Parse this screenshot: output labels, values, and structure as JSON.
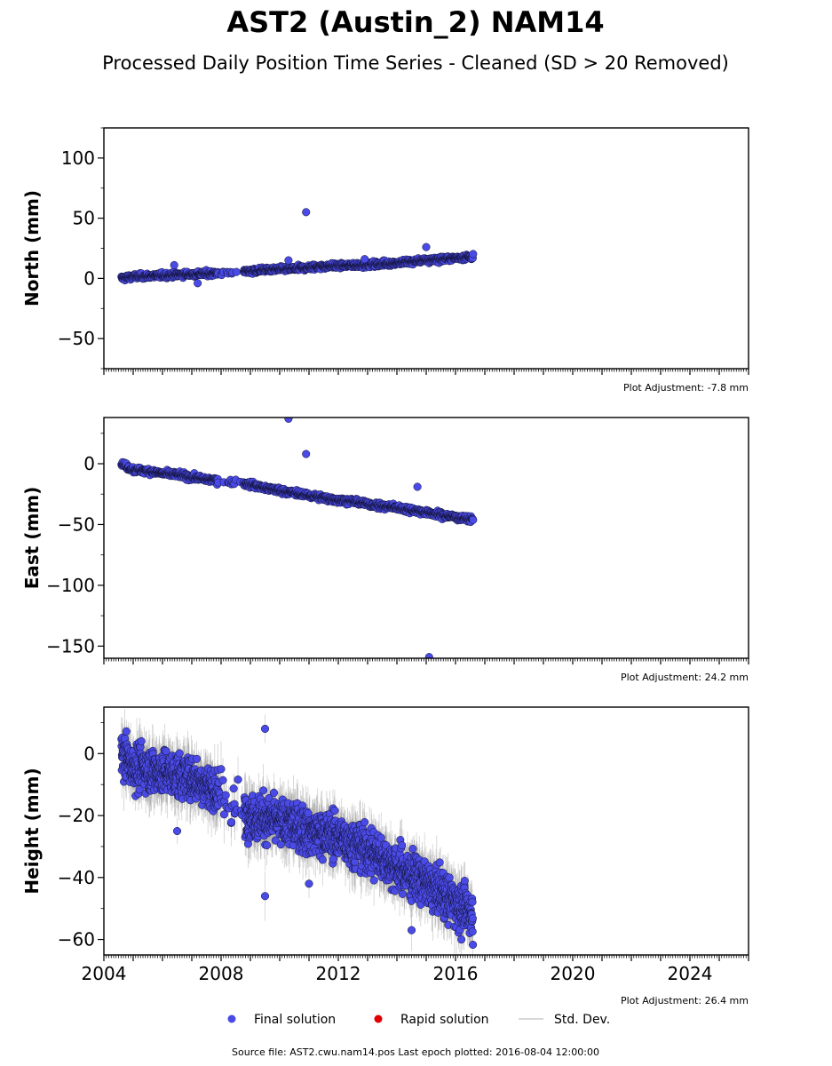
{
  "figure": {
    "title": "AST2 (Austin_2) NAM14",
    "subtitle": "Processed Daily Position Time Series - Cleaned (SD > 20 Removed)",
    "source_note": "Source file: AST2.cwu.nam14.pos  Last epoch plotted: 2016-08-04 12:00:00"
  },
  "legend": {
    "placement": "bottom-center",
    "items": [
      {
        "label": "Final solution",
        "color": "#4a4ae6",
        "kind": "marker"
      },
      {
        "label": "Rapid solution",
        "color": "#e00000",
        "kind": "marker"
      },
      {
        "label": "Std. Dev.",
        "color": "#cccccc",
        "kind": "line"
      }
    ]
  },
  "colors": {
    "final": "#4a4ae6",
    "marker_edge": "#111133",
    "errorbar": "#9a9a9a",
    "rapid": "#e00000"
  },
  "chart_data": [
    {
      "type": "scatter",
      "ylabel": "North (mm)",
      "adjustment": "Plot Adjustment: -7.8 mm",
      "xlim": [
        2004,
        2026
      ],
      "ylim": [
        -75,
        125
      ],
      "yticks": [
        -50,
        0,
        50,
        100
      ],
      "ytick_labels": [
        "−50",
        "0",
        "50",
        "100"
      ],
      "grid": false,
      "series": [
        {
          "values_x": [
            2004.6,
            2005.0,
            2005.5,
            2006.0,
            2006.5,
            2007.0,
            2007.5,
            2008.0,
            2008.5,
            2009.0,
            2009.5,
            2010.0,
            2010.5,
            2011.0,
            2011.5,
            2012.0,
            2012.5,
            2013.0,
            2013.5,
            2014.0,
            2014.5,
            2015.0,
            2015.5,
            2016.0,
            2016.6
          ],
          "values_y": [
            0,
            1.5,
            2,
            2.5,
            3,
            3.5,
            4,
            4.5,
            5,
            6,
            7,
            7.5,
            8,
            9,
            10,
            10.5,
            11,
            11.5,
            12,
            13,
            14,
            15,
            16,
            17,
            18
          ]
        }
      ],
      "outliers": [
        [
          2010.9,
          55
        ],
        [
          2006.4,
          11
        ],
        [
          2010.3,
          15
        ],
        [
          2007.2,
          -4
        ],
        [
          2015.0,
          26
        ],
        [
          2012.9,
          16
        ]
      ]
    },
    {
      "type": "scatter",
      "ylabel": "East (mm)",
      "adjustment": "Plot Adjustment: 24.2 mm",
      "xlim": [
        2004,
        2026
      ],
      "ylim": [
        -160,
        38
      ],
      "yticks": [
        -150,
        -100,
        -50,
        0
      ],
      "ytick_labels": [
        "−150",
        "−100",
        "−50",
        "0"
      ],
      "grid": false,
      "series": [
        {
          "values_x": [
            2004.6,
            2005.0,
            2005.5,
            2006.0,
            2006.5,
            2007.0,
            2007.5,
            2008.0,
            2009.0,
            2009.5,
            2010.0,
            2010.5,
            2011.0,
            2011.5,
            2012.0,
            2012.5,
            2013.0,
            2013.5,
            2014.0,
            2014.5,
            2015.0,
            2015.5,
            2016.0,
            2016.6
          ],
          "values_y": [
            0,
            -5,
            -6,
            -8,
            -9,
            -11,
            -13,
            -14,
            -17,
            -20,
            -22,
            -24,
            -26,
            -28,
            -30,
            -31,
            -33,
            -35,
            -36,
            -38,
            -40,
            -42,
            -44,
            -46
          ]
        }
      ],
      "outliers": [
        [
          2010.3,
          37
        ],
        [
          2010.9,
          8
        ],
        [
          2014.7,
          -19
        ],
        [
          2015.1,
          -159
        ]
      ]
    },
    {
      "type": "scatter",
      "ylabel": "Height (mm)",
      "adjustment": "Plot Adjustment: 26.4 mm",
      "xlim": [
        2004,
        2026
      ],
      "ylim": [
        -65,
        15
      ],
      "yticks": [
        -60,
        -40,
        -20,
        0
      ],
      "ytick_labels": [
        "−60",
        "−40",
        "−20",
        "0"
      ],
      "xticks": [
        2004,
        2008,
        2012,
        2016,
        2020,
        2024
      ],
      "xtick_labels": [
        "2004",
        "2008",
        "2012",
        "2016",
        "2020",
        "2024"
      ],
      "grid": false,
      "series": [
        {
          "values_x": [
            2004.6,
            2005.0,
            2005.5,
            2006.0,
            2006.5,
            2007.0,
            2007.5,
            2008.0,
            2009.0,
            2009.5,
            2010.0,
            2010.5,
            2011.0,
            2011.5,
            2012.0,
            2012.5,
            2013.0,
            2013.5,
            2014.0,
            2014.5,
            2015.0,
            2015.5,
            2016.0,
            2016.6
          ],
          "values_y": [
            0,
            -4,
            -5,
            -6,
            -7,
            -8,
            -10,
            -14,
            -20,
            -21,
            -22,
            -23,
            -25,
            -26,
            -27,
            -29,
            -31,
            -34,
            -37,
            -39,
            -42,
            -45,
            -48,
            -52
          ]
        }
      ],
      "outliers": [
        [
          2009.5,
          8
        ],
        [
          2009.5,
          -46
        ],
        [
          2011.0,
          -42
        ],
        [
          2006.5,
          -25
        ],
        [
          2014.5,
          -57
        ],
        [
          2016.2,
          -60
        ],
        [
          2008.0,
          -5
        ]
      ]
    }
  ]
}
